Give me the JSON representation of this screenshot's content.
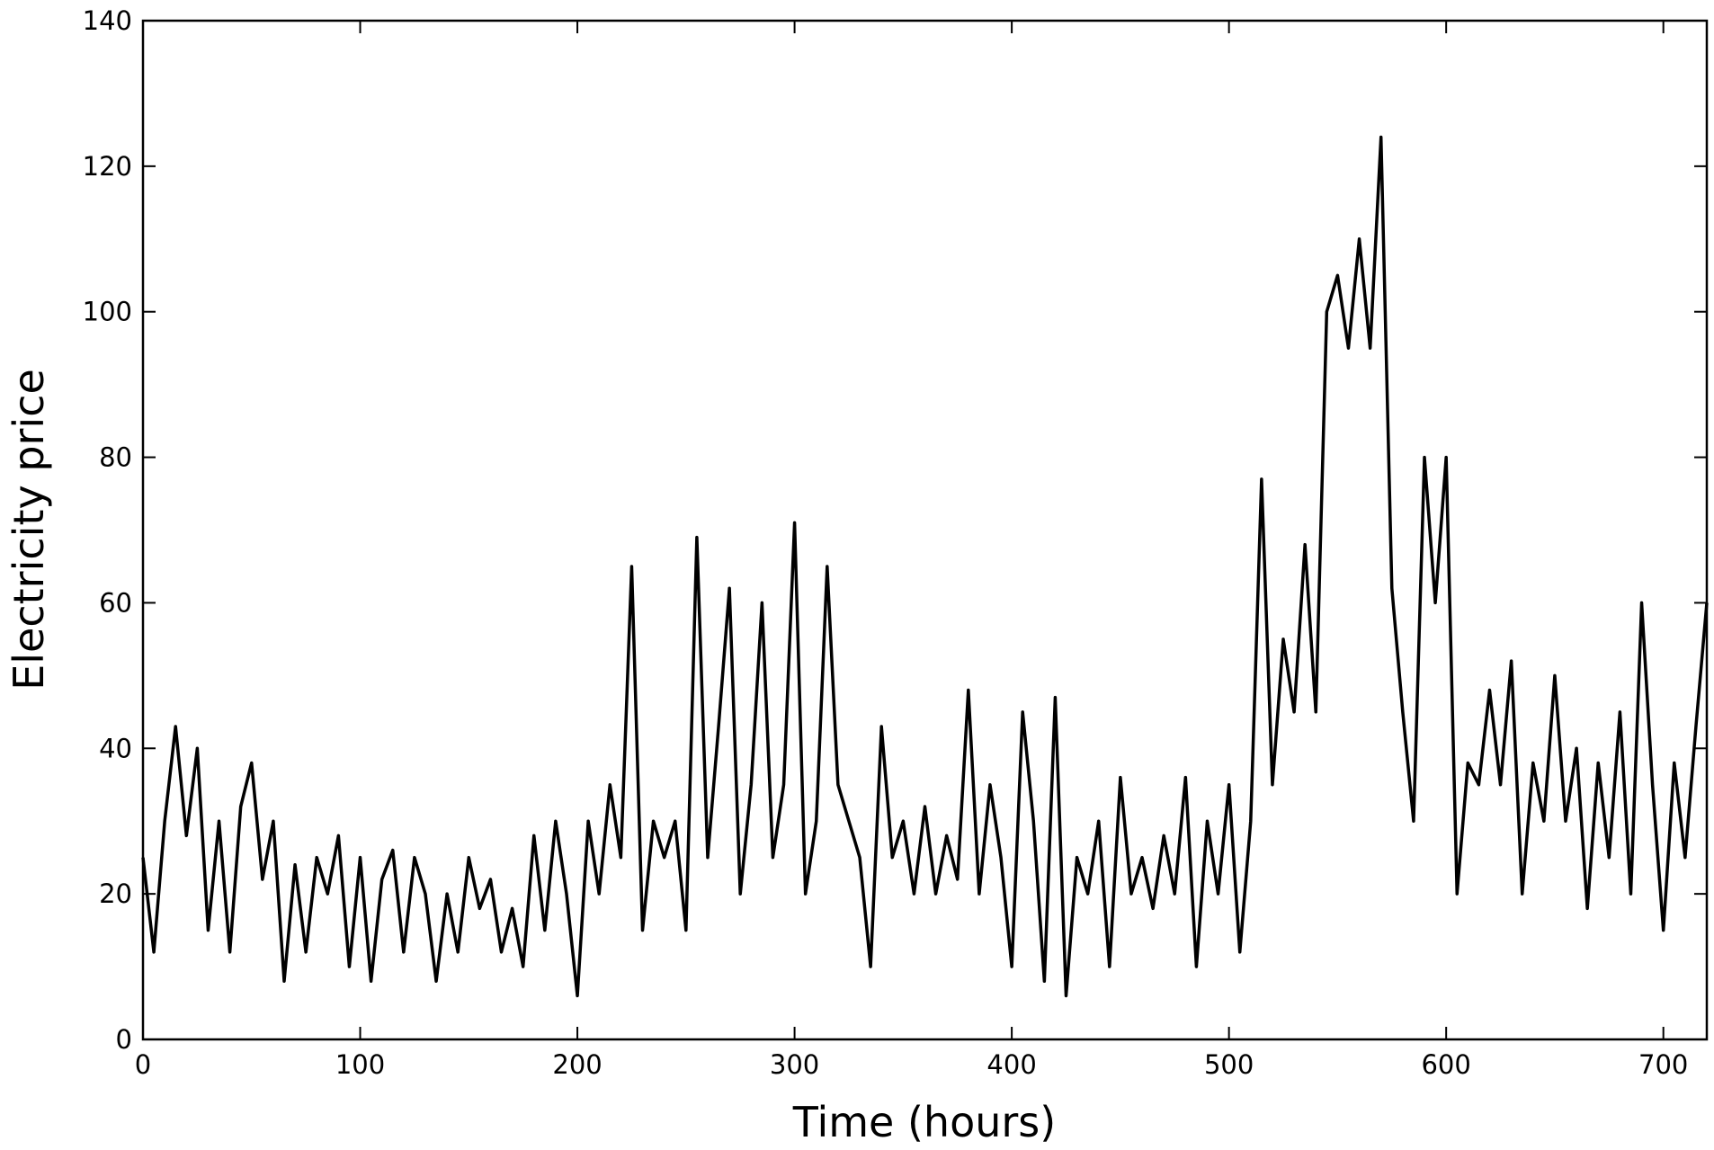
{
  "chart_data": {
    "type": "line",
    "xlabel": "Time (hours)",
    "ylabel": "Electricity price",
    "xlim": [
      0,
      720
    ],
    "ylim": [
      0,
      140
    ],
    "xticks": [
      0,
      100,
      200,
      300,
      400,
      500,
      600,
      700
    ],
    "yticks": [
      0,
      20,
      40,
      60,
      80,
      100,
      120,
      140
    ],
    "x": [
      0,
      5,
      10,
      15,
      20,
      25,
      30,
      35,
      40,
      45,
      50,
      55,
      60,
      65,
      70,
      75,
      80,
      85,
      90,
      95,
      100,
      105,
      110,
      115,
      120,
      125,
      130,
      135,
      140,
      145,
      150,
      155,
      160,
      165,
      170,
      175,
      180,
      185,
      190,
      195,
      200,
      205,
      210,
      215,
      220,
      225,
      230,
      235,
      240,
      245,
      250,
      255,
      260,
      265,
      270,
      275,
      280,
      285,
      290,
      295,
      300,
      305,
      310,
      315,
      320,
      325,
      330,
      335,
      340,
      345,
      350,
      355,
      360,
      365,
      370,
      375,
      380,
      385,
      390,
      395,
      400,
      405,
      410,
      415,
      420,
      425,
      430,
      435,
      440,
      445,
      450,
      455,
      460,
      465,
      470,
      475,
      480,
      485,
      490,
      495,
      500,
      505,
      510,
      515,
      520,
      525,
      530,
      535,
      540,
      545,
      550,
      555,
      560,
      565,
      570,
      575,
      580,
      585,
      590,
      595,
      600,
      605,
      610,
      615,
      620,
      625,
      630,
      635,
      640,
      645,
      650,
      655,
      660,
      665,
      670,
      675,
      680,
      685,
      690,
      695,
      700,
      705,
      710,
      715,
      720
    ],
    "series": [
      {
        "color": "#000000",
        "values": [
          25,
          12,
          30,
          43,
          28,
          40,
          15,
          30,
          12,
          32,
          38,
          22,
          30,
          8,
          24,
          12,
          25,
          20,
          28,
          10,
          25,
          8,
          22,
          26,
          12,
          25,
          20,
          8,
          20,
          12,
          25,
          18,
          22,
          12,
          18,
          10,
          28,
          15,
          30,
          20,
          6,
          30,
          20,
          35,
          25,
          65,
          15,
          30,
          25,
          30,
          15,
          69,
          25,
          43,
          62,
          20,
          35,
          60,
          25,
          35,
          71,
          20,
          30,
          65,
          35,
          30,
          25,
          10,
          43,
          25,
          30,
          20,
          32,
          20,
          28,
          22,
          48,
          20,
          35,
          25,
          10,
          45,
          30,
          8,
          47,
          6,
          25,
          20,
          30,
          10,
          36,
          20,
          25,
          18,
          28,
          20,
          36,
          10,
          30,
          20,
          35,
          12,
          30,
          77,
          35,
          55,
          45,
          68,
          45,
          100,
          105,
          95,
          110,
          95,
          124,
          62,
          45,
          30,
          80,
          60,
          80,
          20,
          38,
          35,
          48,
          35,
          52,
          20,
          38,
          30,
          50,
          30,
          40,
          18,
          38,
          25,
          45,
          20,
          60,
          35,
          15,
          38,
          25,
          43,
          60
        ]
      }
    ]
  }
}
